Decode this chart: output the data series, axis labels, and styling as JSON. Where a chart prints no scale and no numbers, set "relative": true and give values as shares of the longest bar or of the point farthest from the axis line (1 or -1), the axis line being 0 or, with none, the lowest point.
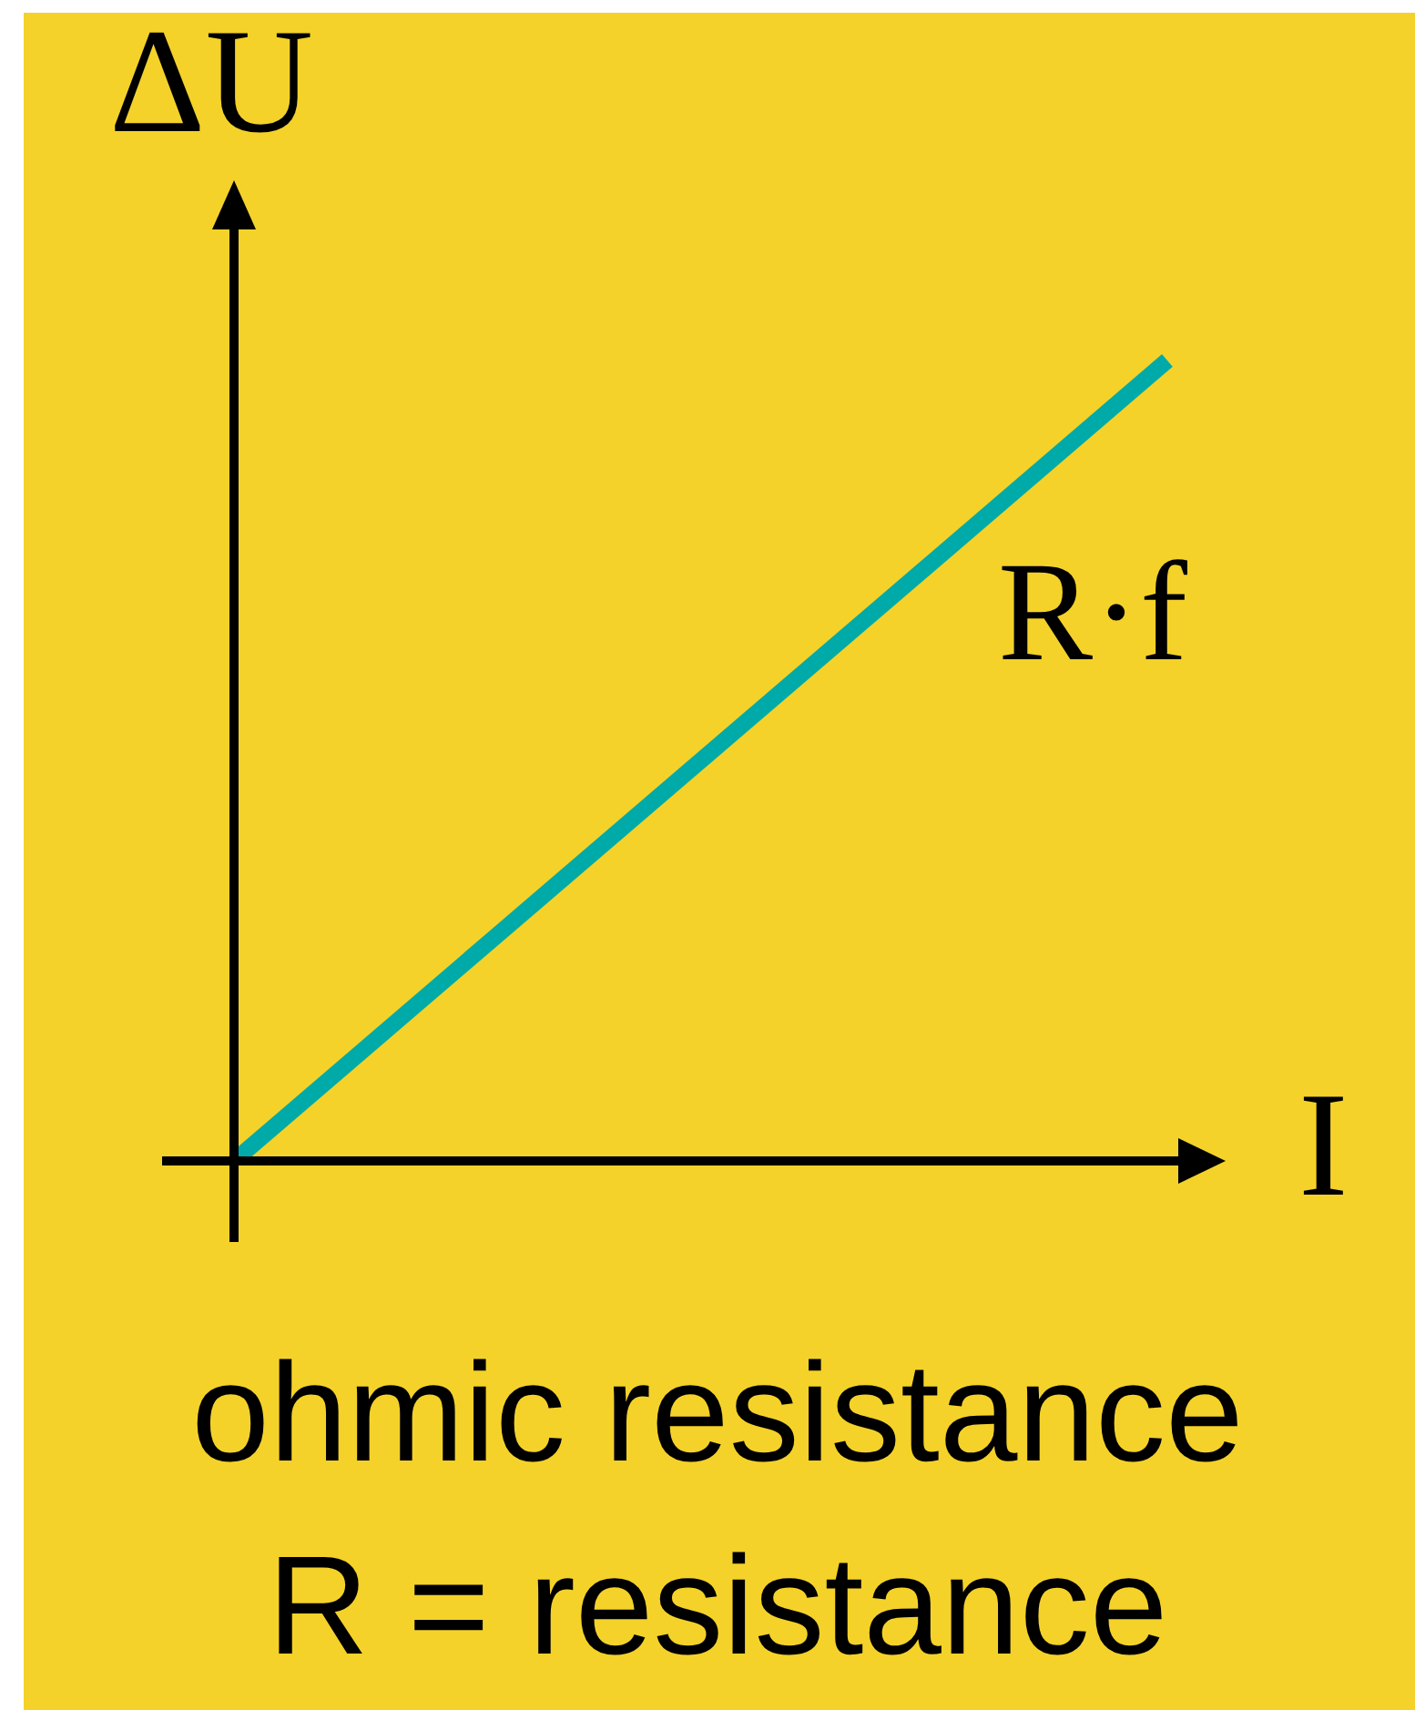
{
  "chart_data": {
    "type": "line",
    "title": "ohmic resistance",
    "xlabel": "I",
    "ylabel": "ΔU",
    "annotations": [
      "R = resistance"
    ],
    "categories": [
      null,
      null
    ],
    "relative": true,
    "series": [
      {
        "name": "R·f",
        "color": "#00aaa8",
        "values": [
          0,
          1
        ]
      }
    ]
  }
}
